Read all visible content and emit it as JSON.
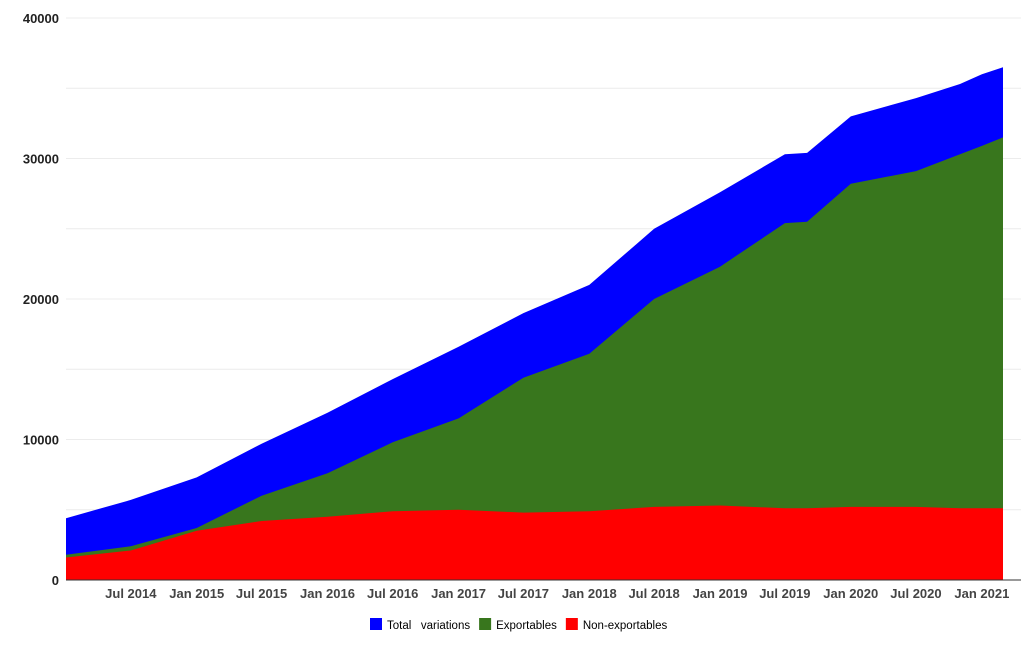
{
  "chart_data": {
    "type": "area",
    "stacked": false,
    "x_dates": [
      "2014-01",
      "2014-07",
      "2015-01",
      "2015-07",
      "2016-01",
      "2016-07",
      "2017-01",
      "2017-07",
      "2018-01",
      "2018-07",
      "2019-01",
      "2019-07",
      "2019-09",
      "2020-01",
      "2020-07",
      "2020-11",
      "2021-01",
      "2021-03"
    ],
    "series": [
      {
        "name": "Total variations",
        "color": "#0000ff",
        "values": [
          4400,
          5700,
          7300,
          9700,
          11900,
          14300,
          16600,
          19000,
          21000,
          25000,
          27600,
          30300,
          30400,
          33000,
          34300,
          35300,
          36000,
          36500
        ]
      },
      {
        "name": "Exportables",
        "color": "#38761d",
        "values": [
          1800,
          2400,
          3700,
          6000,
          7600,
          9800,
          11500,
          14400,
          16100,
          20000,
          22300,
          25400,
          25500,
          28200,
          29100,
          30300,
          30900,
          31500
        ]
      },
      {
        "name": "Non-exportables",
        "color": "#ff0000",
        "values": [
          1600,
          2100,
          3500,
          4200,
          4500,
          4900,
          5000,
          4800,
          4900,
          5200,
          5300,
          5100,
          5100,
          5200,
          5200,
          5100,
          5100,
          5100
        ]
      }
    ],
    "xlabel": "",
    "ylabel": "",
    "ylim": [
      0,
      40000
    ],
    "y_ticks": [
      "0",
      "10000",
      "20000",
      "30000",
      "40000"
    ],
    "x_ticks": [
      "Jul 2014",
      "Jan 2015",
      "Jul 2015",
      "Jan 2016",
      "Jul 2016",
      "Jan 2017",
      "Jul 2017",
      "Jan 2018",
      "Jul 2018",
      "Jan 2019",
      "Jul 2019",
      "Jan 2020",
      "Jul 2020",
      "Jan 2021"
    ],
    "grid": true,
    "legend_position": "bottom-center",
    "legend": [
      {
        "label": "Total   variations",
        "color": "#0000ff"
      },
      {
        "label": "Exportables",
        "color": "#38761d"
      },
      {
        "label": "Non-exportables",
        "color": "#ff0000"
      }
    ]
  }
}
